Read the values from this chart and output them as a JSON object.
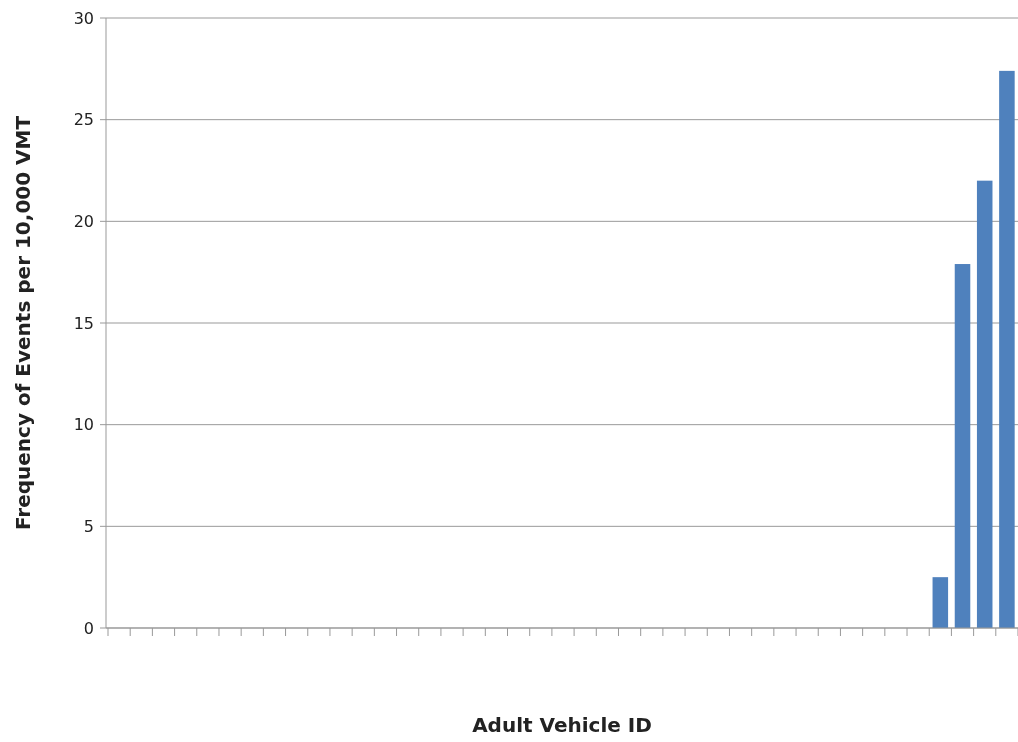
{
  "chart_data": {
    "type": "bar",
    "xlabel": "Adult Vehicle ID",
    "ylabel": "Frequency of Events per 10,000 VMT",
    "categories": [
      null,
      null,
      null,
      null,
      null,
      null,
      null,
      null,
      null,
      null,
      null,
      null,
      null,
      null,
      null,
      null,
      null,
      null,
      null,
      null,
      null,
      null,
      null,
      null,
      null,
      null,
      null,
      null,
      null,
      null,
      null,
      null,
      null,
      null,
      null,
      null,
      null,
      null,
      null,
      null,
      null
    ],
    "values": [
      0,
      0,
      0,
      0,
      0,
      0,
      0,
      0,
      0,
      0,
      0,
      0,
      0,
      0,
      0,
      0,
      0,
      0,
      0,
      0,
      0,
      0,
      0,
      0,
      0,
      0,
      0,
      0,
      0,
      0,
      0,
      0,
      0,
      0,
      0,
      0,
      0,
      2.5,
      17.9,
      22,
      27.4
    ],
    "color": "#4f81bd",
    "ylim": [
      0,
      30
    ],
    "yticks": [
      0,
      5,
      10,
      15,
      20,
      25,
      30
    ],
    "grid": "y"
  }
}
